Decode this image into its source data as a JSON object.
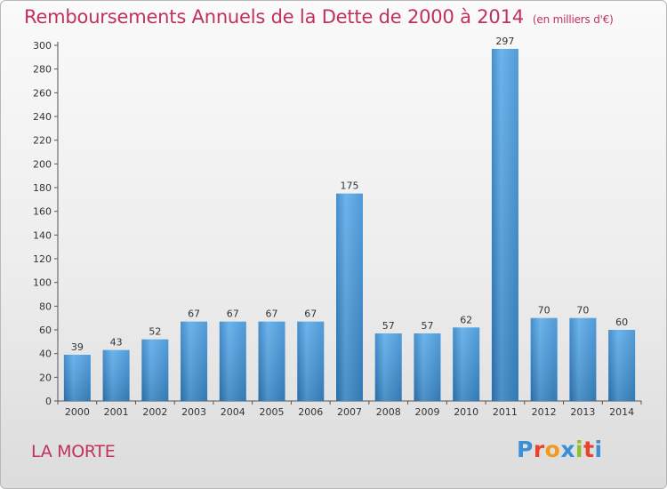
{
  "title": "Remboursements Annuels de la Dette de 2000 à 2014",
  "subtitle": "(en milliers d'€)",
  "commune": "LA MORTE",
  "logo": {
    "letters": [
      "P",
      "r",
      "o",
      "x",
      "i",
      "t",
      "i"
    ],
    "colors": [
      "#3b8fd6",
      "#e8432e",
      "#f29a1f",
      "#3b8fd6",
      "#8dbf2e",
      "#e8432e",
      "#3b8fd6"
    ]
  },
  "chart_data": {
    "type": "bar",
    "categories": [
      "2000",
      "2001",
      "2002",
      "2003",
      "2004",
      "2005",
      "2006",
      "2007",
      "2008",
      "2009",
      "2010",
      "2011",
      "2012",
      "2013",
      "2014"
    ],
    "values": [
      39,
      43,
      52,
      67,
      67,
      67,
      67,
      175,
      57,
      57,
      62,
      297,
      70,
      70,
      60
    ],
    "title": "Remboursements Annuels de la Dette de 2000 à 2014",
    "ylim": [
      0,
      300
    ],
    "yticks": [
      0,
      20,
      40,
      60,
      80,
      100,
      120,
      140,
      160,
      180,
      200,
      220,
      240,
      260,
      280,
      300
    ],
    "grid": false,
    "bar_color": "#4a9de0"
  }
}
